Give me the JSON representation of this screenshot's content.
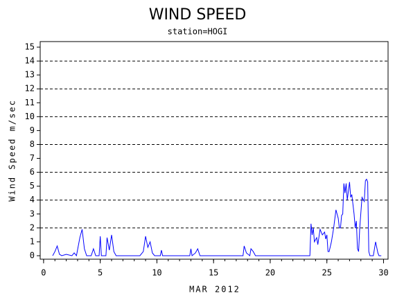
{
  "chart_data": {
    "type": "line",
    "title": "WIND SPEED",
    "subtitle": "station=HOGI",
    "x_label": "MAR 2012",
    "y_label": "Wind Speed m/sec",
    "color": "#0000ff",
    "x": [
      0.8,
      1.0,
      1.2,
      1.4,
      1.6,
      2.0,
      2.5,
      2.7,
      2.9,
      3.2,
      3.4,
      3.6,
      3.8,
      4.2,
      4.4,
      4.6,
      4.9,
      5.0,
      5.1,
      5.5,
      5.6,
      5.8,
      6.0,
      6.2,
      6.4,
      8.5,
      8.8,
      9.0,
      9.2,
      9.4,
      9.6,
      9.8,
      10.3,
      10.4,
      10.5,
      12.9,
      13.0,
      13.1,
      13.4,
      13.6,
      13.8,
      17.6,
      17.7,
      17.9,
      18.2,
      18.3,
      18.5,
      18.7,
      23.5,
      23.6,
      23.7,
      23.8,
      23.9,
      24.1,
      24.2,
      24.4,
      24.6,
      24.8,
      24.9,
      25.0,
      25.1,
      25.2,
      25.4,
      25.6,
      25.8,
      26.0,
      26.1,
      26.2,
      26.3,
      26.4,
      26.5,
      26.6,
      26.7,
      26.8,
      27.0,
      27.1,
      27.2,
      27.4,
      27.5,
      27.6,
      27.7,
      27.8,
      27.9,
      28.1,
      28.3,
      28.4,
      28.5,
      28.6,
      28.7,
      28.8,
      29.1,
      29.3,
      29.5,
      29.6,
      29.8
    ],
    "values": [
      0,
      0.3,
      0.7,
      0.1,
      0,
      0.1,
      0,
      0.2,
      0,
      1.3,
      1.9,
      0.5,
      0,
      0,
      0.5,
      0,
      0,
      1.4,
      0,
      0,
      1.3,
      0.4,
      1.5,
      0.3,
      0,
      0,
      0.3,
      1.4,
      0.6,
      1.0,
      0.2,
      0,
      0,
      0.4,
      0,
      0,
      0.5,
      0,
      0.2,
      0.5,
      0,
      0,
      0.7,
      0.2,
      0,
      0.5,
      0.3,
      0,
      0,
      2.3,
      1.5,
      2.0,
      1.0,
      1.3,
      0.8,
      1.9,
      1.5,
      1.7,
      1.2,
      1.5,
      0.3,
      0.3,
      1.0,
      2.0,
      3.3,
      2.7,
      2.0,
      2.0,
      2.9,
      3.0,
      5.2,
      4.5,
      5.2,
      4.0,
      5.3,
      4.2,
      4.4,
      3.0,
      2.0,
      2.5,
      0.5,
      0.3,
      2.0,
      4.2,
      3.9,
      5.4,
      5.5,
      5.3,
      0.3,
      0,
      0,
      1.0,
      0.2,
      0,
      0
    ],
    "xlim": [
      -0.3,
      30.4
    ],
    "ylim": [
      -0.25,
      15.4
    ],
    "xticks": [
      0,
      5,
      10,
      15,
      20,
      25,
      30
    ],
    "xminorticks": [
      0,
      1,
      2,
      3,
      4,
      5,
      6,
      7,
      8,
      9,
      10,
      11,
      12,
      13,
      14,
      15,
      16,
      17,
      18,
      19,
      20,
      21,
      22,
      23,
      24,
      25,
      26,
      27,
      28,
      29,
      30
    ],
    "yticks": [
      0,
      1,
      2,
      3,
      4,
      5,
      6,
      7,
      8,
      9,
      10,
      11,
      12,
      13,
      14,
      15
    ],
    "ygrid": [
      2,
      4,
      6,
      8,
      10,
      12,
      14
    ]
  }
}
